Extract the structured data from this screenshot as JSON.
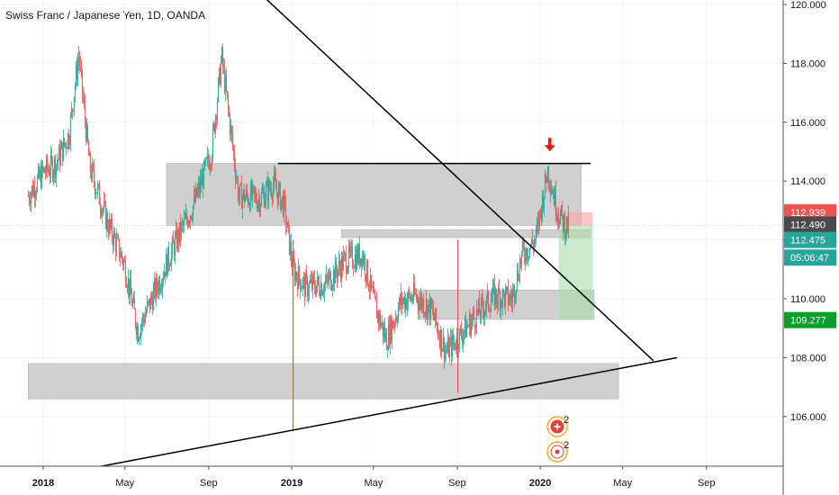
{
  "header": {
    "title": "Swiss Franc / Japanese Yen, 1D, OANDA"
  },
  "colors": {
    "up": "#26a69a",
    "down": "#ef5350",
    "zone": "#c8c8c8",
    "stop": "#ef5350",
    "target": "#26a69a",
    "current": "#131722"
  },
  "chart_data": {
    "type": "candlestick",
    "symbol": "CHFJPY",
    "interval": "1D",
    "ylim": [
      104.0,
      120.5
    ],
    "y_ticks": [
      "120.000",
      "118.000",
      "116.000",
      "114.000",
      "112.000",
      "110.000",
      "108.000",
      "106.000"
    ],
    "x_ticks": [
      {
        "label": "2018",
        "bold": true
      },
      {
        "label": "May",
        "bold": false
      },
      {
        "label": "Sep",
        "bold": false
      },
      {
        "label": "2019",
        "bold": true
      },
      {
        "label": "May",
        "bold": false
      },
      {
        "label": "Sep",
        "bold": false
      },
      {
        "label": "2020",
        "bold": true
      },
      {
        "label": "May",
        "bold": false
      },
      {
        "label": "Sep",
        "bold": false
      }
    ],
    "price_path": [
      [
        "2017-12-10",
        113.5
      ],
      [
        "2018-01-01",
        114.3
      ],
      [
        "2018-01-20",
        114.6
      ],
      [
        "2018-02-08",
        115.6
      ],
      [
        "2018-02-22",
        118.3
      ],
      [
        "2018-03-10",
        114.5
      ],
      [
        "2018-04-05",
        112.6
      ],
      [
        "2018-04-30",
        111.2
      ],
      [
        "2018-05-20",
        108.9
      ],
      [
        "2018-06-15",
        110.3
      ],
      [
        "2018-07-10",
        111.7
      ],
      [
        "2018-08-10",
        113.2
      ],
      [
        "2018-09-05",
        115.0
      ],
      [
        "2018-09-20",
        118.2
      ],
      [
        "2018-10-15",
        113.5
      ],
      [
        "2018-11-15",
        113.4
      ],
      [
        "2018-12-05",
        113.9
      ],
      [
        "2018-12-20",
        113.2
      ],
      [
        "2019-01-03",
        111.0
      ],
      [
        "2019-01-20",
        110.4
      ],
      [
        "2019-02-20",
        110.5
      ],
      [
        "2019-03-20",
        111.3
      ],
      [
        "2019-04-15",
        111.5
      ],
      [
        "2019-05-01",
        109.9
      ],
      [
        "2019-05-20",
        108.6
      ],
      [
        "2019-06-10",
        109.9
      ],
      [
        "2019-07-01",
        110.1
      ],
      [
        "2019-07-25",
        109.6
      ],
      [
        "2019-08-15",
        108.2
      ],
      [
        "2019-08-28",
        108.5
      ],
      [
        "2019-09-10",
        108.9
      ],
      [
        "2019-10-01",
        109.5
      ],
      [
        "2019-10-25",
        110.1
      ],
      [
        "2019-11-20",
        110.0
      ],
      [
        "2019-12-05",
        111.5
      ],
      [
        "2019-12-25",
        112.0
      ],
      [
        "2020-01-12",
        114.4
      ],
      [
        "2020-01-25",
        113.1
      ],
      [
        "2020-02-05",
        112.5
      ],
      [
        "2020-02-12",
        112.48
      ]
    ],
    "spikes": [
      {
        "date": "2019-01-03",
        "low": 105.5
      },
      {
        "date": "2019-09-02",
        "low": 106.8
      }
    ],
    "current_price": "112.490",
    "price_tags": [
      {
        "label": "112.939",
        "value": 112.939,
        "color": "#ef5350"
      },
      {
        "label": "112.490",
        "value": 112.52,
        "color": "#4a4a4a"
      },
      {
        "label": "112.475",
        "value": 112.0,
        "color": "#26a69a"
      },
      {
        "label": "05:06:47",
        "value": 111.4,
        "color": "#26a69a"
      },
      {
        "label": "109.277",
        "value": 109.277,
        "color": "#0b9e2a"
      }
    ],
    "zones": [
      {
        "name": "resistance-zone",
        "x0": "2018-07-01",
        "x1": "2020-03-01",
        "y0": 112.5,
        "y1": 114.6
      },
      {
        "name": "mid-zone",
        "x0": "2019-03-15",
        "x1": "2020-03-15",
        "y0": 112.08,
        "y1": 112.35
      },
      {
        "name": "support-zone",
        "x0": "2019-07-05",
        "x1": "2020-03-20",
        "y0": 109.3,
        "y1": 110.3
      },
      {
        "name": "lower-zone",
        "x0": "2017-12-10",
        "x1": "2020-04-25",
        "y0": 106.6,
        "y1": 107.8
      }
    ],
    "trendlines": [
      {
        "name": "descending-trendline",
        "x0": "2018-06-01",
        "y0": 124.0,
        "x1": "2020-06-15",
        "y1": 107.9
      },
      {
        "name": "ascending-trendline",
        "x0": "2018-01-15",
        "y0": 104.0,
        "x1": "2020-07-20",
        "y1": 108.0
      },
      {
        "name": "horizontal-resistance",
        "x0": "2018-12-12",
        "y0": 114.6,
        "x1": "2020-03-15",
        "y1": 114.6
      }
    ],
    "position": {
      "entry_date": "2020-01-28",
      "end_date": "2020-03-18",
      "entry": 112.48,
      "stop": 112.939,
      "target": 109.277
    },
    "marker_arrow": {
      "date": "2020-01-15",
      "value": 115.1
    },
    "event_badges": [
      {
        "date": "2020-01-26",
        "count": "2"
      },
      {
        "date": "2020-01-26",
        "count": "2"
      }
    ]
  }
}
